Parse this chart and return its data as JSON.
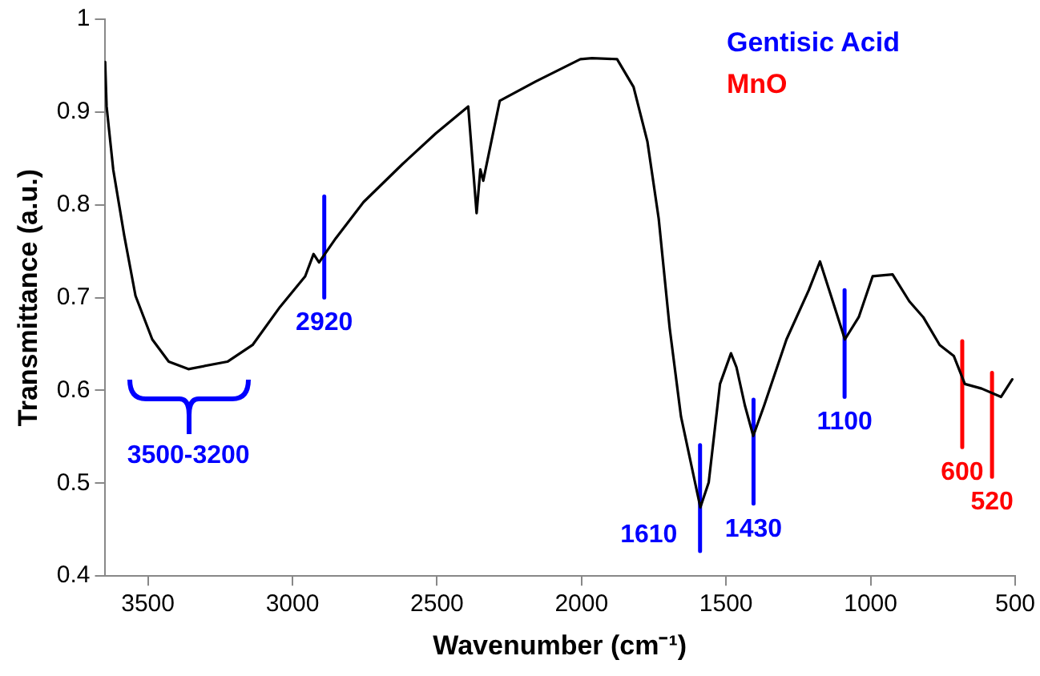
{
  "chart_data": {
    "type": "line",
    "xlabel": "Wavenumber (cm⁻¹)",
    "ylabel": "Transmittance (a.u.)",
    "xlim": [
      3650,
      500
    ],
    "xticks": [
      3500,
      3000,
      2500,
      2000,
      1500,
      1000,
      500
    ],
    "ylim": [
      0.4,
      1
    ],
    "yticks": [
      0.4,
      0.5,
      0.6,
      0.7,
      0.8,
      0.9,
      1
    ],
    "grid": false,
    "legend": "top right",
    "marker": "none",
    "line_style": "solid",
    "series": [
      {
        "color": "#000000",
        "x": [
          3648,
          3643,
          3620,
          3582,
          3543,
          3485,
          3428,
          3360,
          3225,
          3138,
          3043,
          2956,
          2927,
          2908,
          2850,
          2754,
          2619,
          2504,
          2392,
          2363,
          2350,
          2340,
          2283,
          2158,
          2004,
          1964,
          1877,
          1820,
          1772,
          1733,
          1695,
          1656,
          1589,
          1560,
          1521,
          1483,
          1464,
          1435,
          1406,
          1368,
          1291,
          1214,
          1175,
          1137,
          1089,
          1041,
          993,
          924,
          866,
          818,
          761,
          712,
          674,
          616,
          549,
          510
        ],
        "values": [
          0.954,
          0.906,
          0.838,
          0.767,
          0.702,
          0.655,
          0.631,
          0.623,
          0.631,
          0.649,
          0.69,
          0.723,
          0.747,
          0.738,
          0.764,
          0.803,
          0.844,
          0.877,
          0.906,
          0.791,
          0.838,
          0.826,
          0.912,
          0.933,
          0.957,
          0.958,
          0.957,
          0.927,
          0.868,
          0.785,
          0.667,
          0.572,
          0.474,
          0.501,
          0.607,
          0.64,
          0.625,
          0.584,
          0.551,
          0.584,
          0.655,
          0.708,
          0.739,
          0.702,
          0.655,
          0.679,
          0.723,
          0.725,
          0.696,
          0.679,
          0.649,
          0.637,
          0.607,
          0.602,
          0.593,
          0.612
        ]
      },
      {
        "name": "Gentisic Acid",
        "color": "#0000ff",
        "x": [
          2890,
          2890,
          null,
          1590,
          1590,
          null,
          1405,
          1405,
          null,
          1090,
          1090
        ],
        "values": [
          0.809,
          0.7,
          null,
          0.541,
          0.427,
          null,
          0.59,
          0.478,
          null,
          0.708,
          0.593
        ]
      },
      {
        "name": "MnO",
        "color": "#ff0000",
        "x": [
          683,
          683,
          null,
          580,
          580
        ],
        "values": [
          0.653,
          0.539,
          null,
          0.619,
          0.507
        ]
      }
    ],
    "annotations": [
      {
        "text": "3500-3200",
        "x": 3360,
        "y": 0.623
      },
      {
        "text": "2920",
        "x": 2890,
        "y": 0.7
      },
      {
        "text": "1610",
        "x": 1590,
        "y": 0.427
      },
      {
        "text": "1430",
        "x": 1405,
        "y": 0.478
      },
      {
        "text": "1100",
        "x": 1090,
        "y": 0.593
      },
      {
        "text": "600",
        "x": 683,
        "y": 0.539
      },
      {
        "text": "520",
        "x": 580,
        "y": 0.507
      }
    ]
  }
}
